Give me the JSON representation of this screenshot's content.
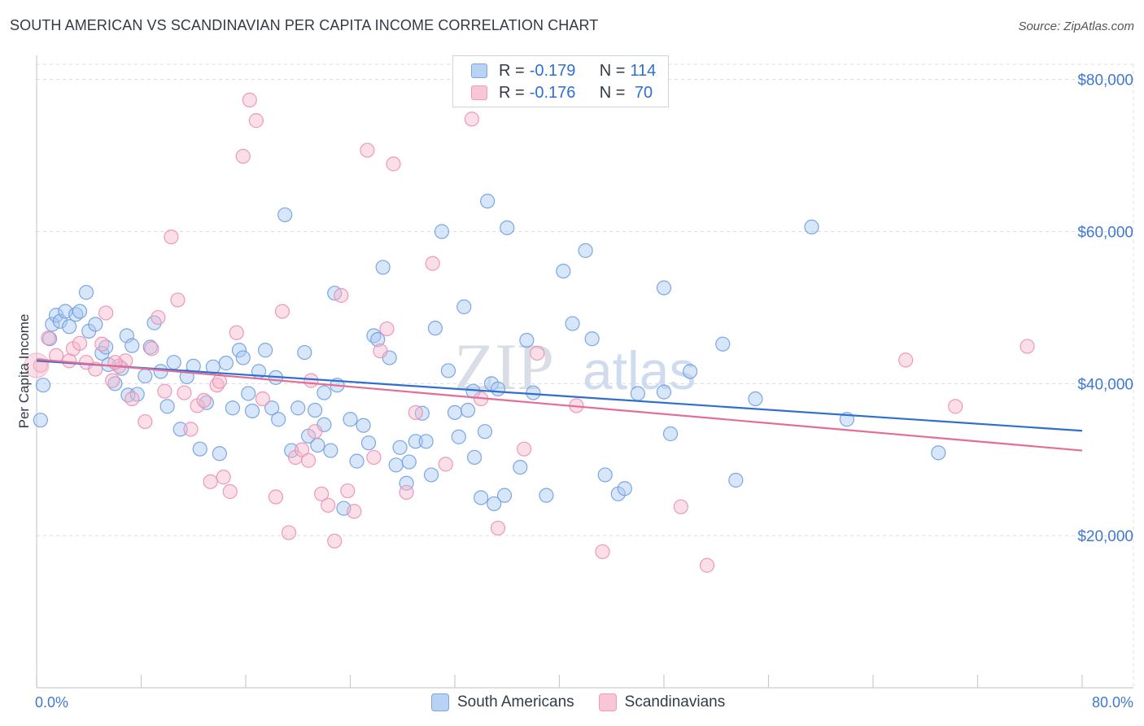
{
  "header": {
    "title": "SOUTH AMERICAN VS SCANDINAVIAN PER CAPITA INCOME CORRELATION CHART",
    "source": "Source: ZipAtlas.com"
  },
  "legend": {
    "rows": [
      {
        "r_label": "R = ",
        "r_value": "-0.179",
        "n_label": "N = ",
        "n_value": "114"
      },
      {
        "r_label": "R = ",
        "r_value": "-0.176",
        "n_label": "N = ",
        "n_value": " 70"
      }
    ]
  },
  "bottom_legend": {
    "items": [
      {
        "label": "South Americans"
      },
      {
        "label": "Scandinavians"
      }
    ]
  },
  "watermark": {
    "zip": "ZIP",
    "atlas": "atlas"
  },
  "colors": {
    "blue_fill": "#a9c8f2",
    "blue_stroke": "#6f9fe0",
    "blue_line": "#2f6fd0",
    "pink_fill": "#f6b8cd",
    "pink_stroke": "#ec8fb0",
    "pink_line": "#e46d98",
    "axis_text": "#3f78d2",
    "grid": "#d8dce2"
  },
  "chart_data": {
    "type": "scatter",
    "title": "SOUTH AMERICAN VS SCANDINAVIAN PER CAPITA INCOME CORRELATION CHART",
    "xlabel": "",
    "ylabel": "Per Capita Income",
    "xlim": [
      0,
      80
    ],
    "ylim": [
      0,
      82000
    ],
    "x_tick_labels": [
      "0.0%",
      "80.0%"
    ],
    "y_ticks": [
      20000,
      40000,
      60000,
      80000
    ],
    "y_tick_labels": [
      "$20,000",
      "$40,000",
      "$60,000",
      "$80,000"
    ],
    "grid": true,
    "series": [
      {
        "name": "South Americans",
        "r": -0.179,
        "n": 114,
        "trend": {
          "x": [
            0,
            80
          ],
          "y": [
            43000,
            33800
          ]
        },
        "points": [
          [
            0.3,
            35200
          ],
          [
            0.5,
            39800
          ],
          [
            1.0,
            45900
          ],
          [
            1.2,
            47800
          ],
          [
            1.5,
            49000
          ],
          [
            1.8,
            48200
          ],
          [
            2.2,
            49500
          ],
          [
            2.5,
            47500
          ],
          [
            3.0,
            49100
          ],
          [
            3.3,
            49500
          ],
          [
            3.8,
            52000
          ],
          [
            4.0,
            46900
          ],
          [
            4.5,
            47800
          ],
          [
            5.0,
            44000
          ],
          [
            5.3,
            44800
          ],
          [
            5.5,
            42500
          ],
          [
            6.0,
            40000
          ],
          [
            6.5,
            42000
          ],
          [
            6.9,
            46300
          ],
          [
            7.3,
            45000
          ],
          [
            7.0,
            38500
          ],
          [
            7.7,
            38600
          ],
          [
            8.3,
            41000
          ],
          [
            8.7,
            44800
          ],
          [
            9.0,
            48000
          ],
          [
            9.5,
            41600
          ],
          [
            10.0,
            37000
          ],
          [
            10.5,
            42800
          ],
          [
            11.0,
            34000
          ],
          [
            11.5,
            40900
          ],
          [
            12.0,
            42300
          ],
          [
            12.5,
            31400
          ],
          [
            13.0,
            37500
          ],
          [
            13.5,
            42200
          ],
          [
            14.0,
            30800
          ],
          [
            14.5,
            42700
          ],
          [
            15.0,
            36800
          ],
          [
            15.5,
            44400
          ],
          [
            15.8,
            43400
          ],
          [
            16.2,
            38700
          ],
          [
            16.5,
            36400
          ],
          [
            17.0,
            41600
          ],
          [
            17.5,
            44400
          ],
          [
            18.0,
            36800
          ],
          [
            18.3,
            40800
          ],
          [
            18.5,
            35300
          ],
          [
            19.0,
            62200
          ],
          [
            19.5,
            31200
          ],
          [
            20.0,
            36800
          ],
          [
            20.5,
            44100
          ],
          [
            20.8,
            33100
          ],
          [
            21.3,
            36500
          ],
          [
            21.5,
            31900
          ],
          [
            22.0,
            34600
          ],
          [
            22.5,
            31200
          ],
          [
            22.8,
            51900
          ],
          [
            23.0,
            39800
          ],
          [
            23.5,
            23600
          ],
          [
            24.0,
            35300
          ],
          [
            24.5,
            29800
          ],
          [
            25.0,
            34500
          ],
          [
            25.4,
            32200
          ],
          [
            25.8,
            46300
          ],
          [
            26.1,
            45800
          ],
          [
            26.5,
            55300
          ],
          [
            27.0,
            43400
          ],
          [
            27.5,
            29300
          ],
          [
            27.8,
            31600
          ],
          [
            28.3,
            26900
          ],
          [
            28.5,
            29700
          ],
          [
            29.0,
            32400
          ],
          [
            29.5,
            36100
          ],
          [
            29.8,
            32400
          ],
          [
            30.2,
            28000
          ],
          [
            30.5,
            47300
          ],
          [
            31.0,
            60000
          ],
          [
            31.5,
            41700
          ],
          [
            32.0,
            36200
          ],
          [
            32.3,
            33000
          ],
          [
            32.7,
            50100
          ],
          [
            33.0,
            36500
          ],
          [
            33.4,
            39000
          ],
          [
            34.0,
            25000
          ],
          [
            34.3,
            33700
          ],
          [
            34.5,
            64000
          ],
          [
            34.8,
            40000
          ],
          [
            35.3,
            39300
          ],
          [
            35.8,
            25300
          ],
          [
            36.0,
            60500
          ],
          [
            35.0,
            24200
          ],
          [
            37.5,
            45700
          ],
          [
            38.0,
            38800
          ],
          [
            39.0,
            25300
          ],
          [
            40.3,
            54800
          ],
          [
            41.0,
            47900
          ],
          [
            42.0,
            57500
          ],
          [
            42.5,
            45900
          ],
          [
            43.5,
            28000
          ],
          [
            44.5,
            25500
          ],
          [
            45.0,
            26200
          ],
          [
            46.0,
            38700
          ],
          [
            48.0,
            52600
          ],
          [
            48.5,
            33400
          ],
          [
            48.0,
            38900
          ],
          [
            50.0,
            41600
          ],
          [
            52.5,
            45200
          ],
          [
            53.5,
            27300
          ],
          [
            55.0,
            38000
          ],
          [
            59.3,
            60600
          ],
          [
            62.0,
            35300
          ],
          [
            69.0,
            30900
          ],
          [
            22.0,
            38800
          ],
          [
            33.5,
            30300
          ],
          [
            37.0,
            29000
          ]
        ]
      },
      {
        "name": "Scandinavians",
        "r": -0.176,
        "n": 70,
        "trend": {
          "x": [
            0,
            80
          ],
          "y": [
            43200,
            31200
          ]
        },
        "points": [
          [
            0.3,
            42400
          ],
          [
            0.9,
            46000
          ],
          [
            1.5,
            43700
          ],
          [
            2.5,
            43000
          ],
          [
            2.8,
            44600
          ],
          [
            3.3,
            45300
          ],
          [
            3.8,
            42800
          ],
          [
            4.5,
            41900
          ],
          [
            5.0,
            45200
          ],
          [
            5.3,
            49300
          ],
          [
            5.8,
            40400
          ],
          [
            6.3,
            42300
          ],
          [
            6.8,
            43000
          ],
          [
            7.3,
            38000
          ],
          [
            8.3,
            35000
          ],
          [
            8.8,
            44600
          ],
          [
            9.3,
            48700
          ],
          [
            9.8,
            39000
          ],
          [
            10.3,
            59300
          ],
          [
            10.8,
            51000
          ],
          [
            11.3,
            38800
          ],
          [
            11.8,
            34000
          ],
          [
            12.3,
            37100
          ],
          [
            12.8,
            37800
          ],
          [
            13.3,
            27100
          ],
          [
            13.8,
            39800
          ],
          [
            14.3,
            27700
          ],
          [
            14.8,
            25800
          ],
          [
            15.3,
            46700
          ],
          [
            15.8,
            69900
          ],
          [
            16.3,
            77300
          ],
          [
            16.8,
            74600
          ],
          [
            17.3,
            38000
          ],
          [
            18.3,
            25100
          ],
          [
            18.8,
            49500
          ],
          [
            19.3,
            20400
          ],
          [
            19.8,
            30300
          ],
          [
            20.3,
            31300
          ],
          [
            20.8,
            29900
          ],
          [
            21.3,
            33700
          ],
          [
            21.8,
            25500
          ],
          [
            22.3,
            24000
          ],
          [
            22.8,
            19300
          ],
          [
            23.3,
            51600
          ],
          [
            23.8,
            25900
          ],
          [
            24.3,
            23200
          ],
          [
            25.3,
            70700
          ],
          [
            25.8,
            30300
          ],
          [
            26.3,
            44300
          ],
          [
            26.8,
            47200
          ],
          [
            27.3,
            68900
          ],
          [
            28.3,
            25700
          ],
          [
            29.0,
            36200
          ],
          [
            30.3,
            55800
          ],
          [
            31.3,
            29400
          ],
          [
            33.3,
            74800
          ],
          [
            35.3,
            21000
          ],
          [
            37.3,
            31400
          ],
          [
            38.3,
            44000
          ],
          [
            41.3,
            37100
          ],
          [
            43.3,
            17900
          ],
          [
            49.3,
            23800
          ],
          [
            51.3,
            16100
          ],
          [
            66.5,
            43100
          ],
          [
            70.3,
            37000
          ],
          [
            75.8,
            44900
          ],
          [
            14.0,
            40300
          ],
          [
            21.0,
            40400
          ],
          [
            6.0,
            42800
          ],
          [
            34.0,
            38000
          ]
        ]
      }
    ]
  }
}
